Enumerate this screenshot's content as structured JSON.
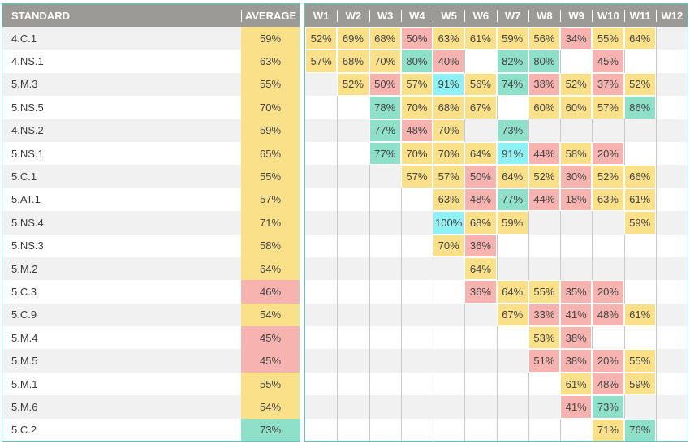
{
  "headers": {
    "standard": "STANDARD",
    "average": "AVERAGE",
    "weeks": [
      "W1",
      "W2",
      "W3",
      "W4",
      "W5",
      "W6",
      "W7",
      "W8",
      "W9",
      "W10",
      "W11",
      "W12"
    ]
  },
  "colors": {
    "yellow": "#fbe08a",
    "red": "#f6b3b0",
    "green": "#8ee0c8",
    "cyan": "#8ef2f4",
    "header_bg": "#9b9a96",
    "border": "#5fc6bc"
  },
  "rows": [
    {
      "standard": "4.C.1",
      "average": "59%",
      "avg_color": "y",
      "weeks": [
        [
          "52%",
          "y"
        ],
        [
          "69%",
          "y"
        ],
        [
          "68%",
          "y"
        ],
        [
          "50%",
          "r"
        ],
        [
          "63%",
          "y"
        ],
        [
          "61%",
          "y"
        ],
        [
          "59%",
          "y"
        ],
        [
          "56%",
          "y"
        ],
        [
          "34%",
          "r"
        ],
        [
          "55%",
          "y"
        ],
        [
          "64%",
          "y"
        ],
        null
      ]
    },
    {
      "standard": "4.NS.1",
      "average": "63%",
      "avg_color": "y",
      "weeks": [
        [
          "57%",
          "y"
        ],
        [
          "68%",
          "y"
        ],
        [
          "70%",
          "y"
        ],
        [
          "80%",
          "g"
        ],
        [
          "40%",
          "r"
        ],
        null,
        [
          "82%",
          "g"
        ],
        [
          "80%",
          "g"
        ],
        null,
        [
          "45%",
          "r"
        ],
        null,
        null
      ]
    },
    {
      "standard": "5.M.3",
      "average": "55%",
      "avg_color": "y",
      "weeks": [
        null,
        [
          "52%",
          "y"
        ],
        [
          "50%",
          "r"
        ],
        [
          "57%",
          "y"
        ],
        [
          "91%",
          "b"
        ],
        [
          "56%",
          "y"
        ],
        [
          "74%",
          "g"
        ],
        [
          "38%",
          "r"
        ],
        [
          "52%",
          "y"
        ],
        [
          "37%",
          "r"
        ],
        [
          "52%",
          "y"
        ],
        null
      ]
    },
    {
      "standard": "5.NS.5",
      "average": "70%",
      "avg_color": "y",
      "weeks": [
        null,
        null,
        [
          "78%",
          "g"
        ],
        [
          "70%",
          "y"
        ],
        [
          "68%",
          "y"
        ],
        [
          "67%",
          "y"
        ],
        null,
        [
          "60%",
          "y"
        ],
        [
          "60%",
          "y"
        ],
        [
          "57%",
          "y"
        ],
        [
          "86%",
          "g"
        ],
        null
      ]
    },
    {
      "standard": "4.NS.2",
      "average": "59%",
      "avg_color": "y",
      "weeks": [
        null,
        null,
        [
          "77%",
          "g"
        ],
        [
          "48%",
          "r"
        ],
        [
          "70%",
          "y"
        ],
        null,
        [
          "73%",
          "g"
        ],
        null,
        null,
        null,
        null,
        null
      ]
    },
    {
      "standard": "5.NS.1",
      "average": "65%",
      "avg_color": "y",
      "weeks": [
        null,
        null,
        [
          "77%",
          "g"
        ],
        [
          "70%",
          "y"
        ],
        [
          "70%",
          "y"
        ],
        [
          "64%",
          "y"
        ],
        [
          "91%",
          "b"
        ],
        [
          "44%",
          "r"
        ],
        [
          "58%",
          "y"
        ],
        [
          "20%",
          "r"
        ],
        null,
        null
      ]
    },
    {
      "standard": "5.C.1",
      "average": "55%",
      "avg_color": "y",
      "weeks": [
        null,
        null,
        null,
        [
          "57%",
          "y"
        ],
        [
          "57%",
          "y"
        ],
        [
          "50%",
          "r"
        ],
        [
          "64%",
          "y"
        ],
        [
          "52%",
          "y"
        ],
        [
          "30%",
          "r"
        ],
        [
          "52%",
          "y"
        ],
        [
          "66%",
          "y"
        ],
        null
      ]
    },
    {
      "standard": "5.AT.1",
      "average": "57%",
      "avg_color": "y",
      "weeks": [
        null,
        null,
        null,
        null,
        [
          "63%",
          "y"
        ],
        [
          "48%",
          "r"
        ],
        [
          "77%",
          "g"
        ],
        [
          "44%",
          "r"
        ],
        [
          "18%",
          "r"
        ],
        [
          "63%",
          "y"
        ],
        [
          "61%",
          "y"
        ],
        null
      ]
    },
    {
      "standard": "5.NS.4",
      "average": "71%",
      "avg_color": "y",
      "weeks": [
        null,
        null,
        null,
        null,
        [
          "100%",
          "b"
        ],
        [
          "68%",
          "y"
        ],
        [
          "59%",
          "y"
        ],
        null,
        null,
        null,
        [
          "59%",
          "y"
        ],
        null
      ]
    },
    {
      "standard": "5.NS.3",
      "average": "58%",
      "avg_color": "y",
      "weeks": [
        null,
        null,
        null,
        null,
        [
          "70%",
          "y"
        ],
        [
          "36%",
          "r"
        ],
        null,
        null,
        null,
        null,
        null,
        null
      ]
    },
    {
      "standard": "5.M.2",
      "average": "64%",
      "avg_color": "y",
      "weeks": [
        null,
        null,
        null,
        null,
        null,
        [
          "64%",
          "y"
        ],
        null,
        null,
        null,
        null,
        null,
        null
      ]
    },
    {
      "standard": "5.C.3",
      "average": "46%",
      "avg_color": "r",
      "weeks": [
        null,
        null,
        null,
        null,
        null,
        [
          "36%",
          "r"
        ],
        [
          "64%",
          "y"
        ],
        [
          "55%",
          "y"
        ],
        [
          "35%",
          "r"
        ],
        [
          "20%",
          "r"
        ],
        null,
        null
      ]
    },
    {
      "standard": "5.C.9",
      "average": "54%",
      "avg_color": "y",
      "weeks": [
        null,
        null,
        null,
        null,
        null,
        null,
        [
          "67%",
          "y"
        ],
        [
          "33%",
          "r"
        ],
        [
          "41%",
          "r"
        ],
        [
          "48%",
          "r"
        ],
        [
          "61%",
          "y"
        ],
        null
      ]
    },
    {
      "standard": "5.M.4",
      "average": "45%",
      "avg_color": "r",
      "weeks": [
        null,
        null,
        null,
        null,
        null,
        null,
        null,
        [
          "53%",
          "y"
        ],
        [
          "38%",
          "r"
        ],
        null,
        null,
        null
      ]
    },
    {
      "standard": "5.M.5",
      "average": "45%",
      "avg_color": "r",
      "weeks": [
        null,
        null,
        null,
        null,
        null,
        null,
        null,
        [
          "51%",
          "r"
        ],
        [
          "38%",
          "r"
        ],
        [
          "20%",
          "r"
        ],
        [
          "55%",
          "y"
        ],
        null
      ]
    },
    {
      "standard": "5.M.1",
      "average": "55%",
      "avg_color": "y",
      "weeks": [
        null,
        null,
        null,
        null,
        null,
        null,
        null,
        null,
        [
          "61%",
          "y"
        ],
        [
          "48%",
          "r"
        ],
        [
          "59%",
          "y"
        ],
        null
      ]
    },
    {
      "standard": "5.M.6",
      "average": "54%",
      "avg_color": "y",
      "weeks": [
        null,
        null,
        null,
        null,
        null,
        null,
        null,
        null,
        [
          "41%",
          "r"
        ],
        [
          "73%",
          "g"
        ],
        null,
        null
      ]
    },
    {
      "standard": "5.C.2",
      "average": "73%",
      "avg_color": "g",
      "weeks": [
        null,
        null,
        null,
        null,
        null,
        null,
        null,
        null,
        null,
        [
          "71%",
          "y"
        ],
        [
          "76%",
          "g"
        ],
        null
      ]
    }
  ]
}
